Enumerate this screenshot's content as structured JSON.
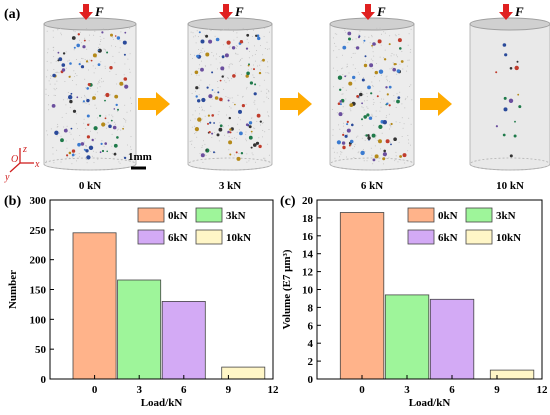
{
  "panel_a": {
    "label": "(a)",
    "force_symbol": "F",
    "scale_bar": "1mm",
    "axes_labels": {
      "z": "z",
      "o": "O",
      "x": "x",
      "y": "y"
    },
    "samples": [
      {
        "load": "0 kN",
        "pores": "many"
      },
      {
        "load": "3 kN",
        "pores": "many"
      },
      {
        "load": "6 kN",
        "pores": "many"
      },
      {
        "load": "10 kN",
        "pores": "few"
      }
    ],
    "colors": {
      "arrow": "#ffaa00",
      "force_arrow": "#e02020",
      "cylinder_shell": "#d3d3d3"
    }
  },
  "chart_data": [
    {
      "panel": "(b)",
      "type": "bar",
      "ylabel": "Number",
      "xlabel": "Load/kN",
      "x": [
        0,
        3,
        6,
        10
      ],
      "values": [
        245,
        166,
        130,
        20
      ],
      "xlim": [
        -3,
        12
      ],
      "ylim": [
        0,
        300
      ],
      "xticks": [
        0,
        3,
        6,
        9,
        12
      ],
      "yticks": [
        0,
        50,
        100,
        150,
        200,
        250,
        300
      ],
      "legend_position": "top-right",
      "series": [
        {
          "name": "0kN",
          "color": "#ffb38a"
        },
        {
          "name": "3kN",
          "color": "#9ef59a"
        },
        {
          "name": "6kN",
          "color": "#d3aaf5"
        },
        {
          "name": "10kN",
          "color": "#fff6c7"
        }
      ]
    },
    {
      "panel": "(c)",
      "type": "bar",
      "ylabel": "Volume (E7 μm³)",
      "xlabel": "Load/kN",
      "x": [
        0,
        3,
        6,
        10
      ],
      "values": [
        18.6,
        9.4,
        8.9,
        1.0
      ],
      "xlim": [
        -3,
        12
      ],
      "ylim": [
        0,
        20
      ],
      "xticks": [
        0,
        3,
        6,
        9,
        12
      ],
      "yticks": [
        0,
        2,
        4,
        6,
        8,
        10,
        12,
        14,
        16,
        18,
        20
      ],
      "legend_position": "top-right",
      "series": [
        {
          "name": "0kN",
          "color": "#ffb38a"
        },
        {
          "name": "3kN",
          "color": "#9ef59a"
        },
        {
          "name": "6kN",
          "color": "#d3aaf5"
        },
        {
          "name": "10kN",
          "color": "#fff6c7"
        }
      ]
    }
  ]
}
